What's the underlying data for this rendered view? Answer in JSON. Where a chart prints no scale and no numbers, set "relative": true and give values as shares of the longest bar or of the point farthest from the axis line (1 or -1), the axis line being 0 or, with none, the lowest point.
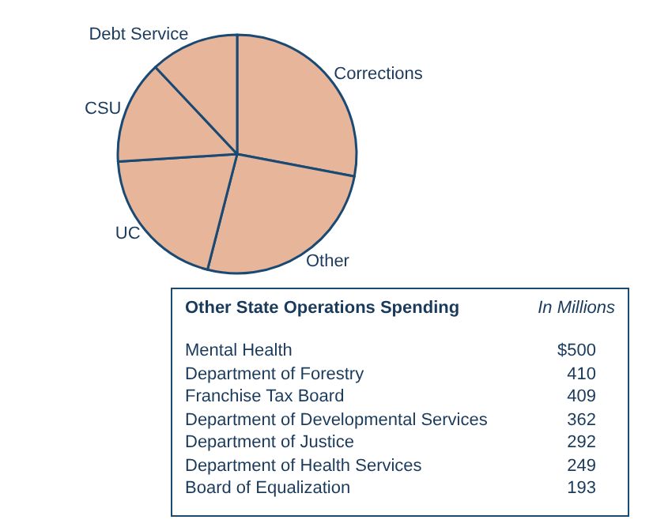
{
  "chart_data": [
    {
      "type": "pie",
      "relative": true,
      "categories": [
        "Corrections",
        "Other",
        "UC",
        "CSU",
        "Debt Service"
      ],
      "values": [
        28,
        26,
        20,
        14,
        12
      ],
      "colors": [
        "#e6b59a",
        "#e6b59a",
        "#e6b59a",
        "#e6b59a",
        "#e6b59a"
      ],
      "legend": false
    },
    {
      "type": "other",
      "title": "Other State Operations Spending",
      "subtitle": "In Millions",
      "categories": [
        "Mental Health",
        "Department of Forestry",
        "Franchise Tax Board",
        "Department of Developmental Services",
        "Department of Justice",
        "Department of Health Services",
        "Board of Equalization"
      ],
      "value_labels": [
        "$500",
        "410",
        "409",
        "362",
        "292",
        "249",
        "193"
      ]
    }
  ]
}
